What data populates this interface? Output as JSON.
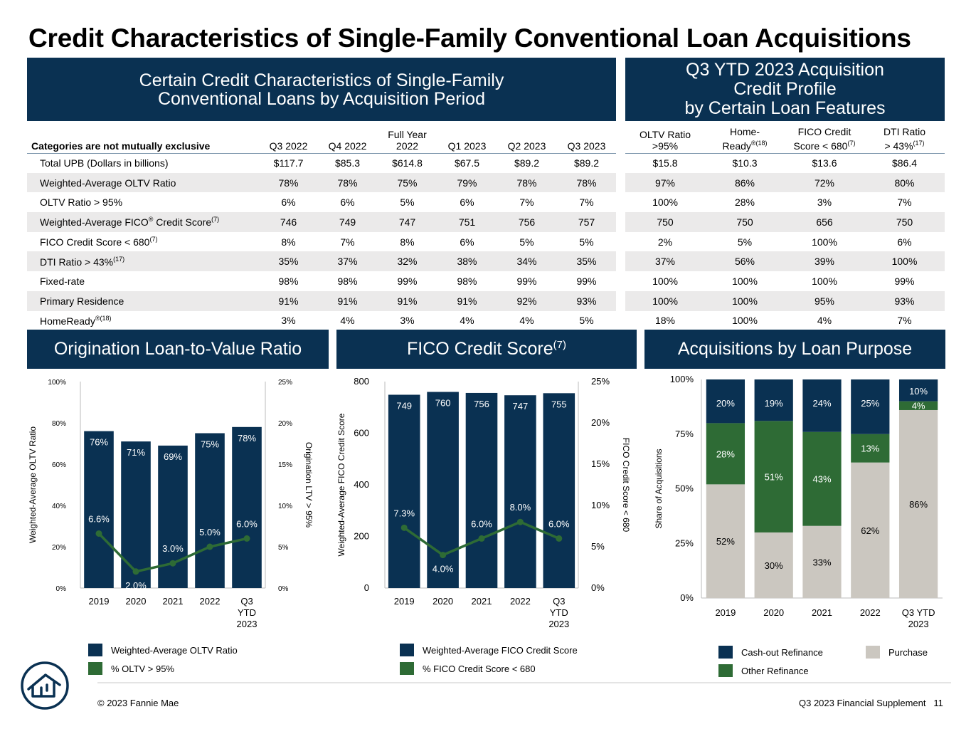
{
  "title": "Credit Characteristics of Single-Family Conventional Loan Acquisitions",
  "left_header": [
    "Certain Credit Characteristics of Single-Family",
    "Conventional Loans by Acquisition Period"
  ],
  "right_header": [
    "Q3 YTD 2023 Acquisition",
    "Credit Profile",
    "by Certain Loan Features"
  ],
  "left_table": {
    "category_label": "Categories are not mutually exclusive",
    "columns": [
      "Q3 2022",
      "Q4 2022",
      "Full Year 2022",
      "Q1 2023",
      "Q2 2023",
      "Q3 2023"
    ],
    "rows": [
      {
        "label": "Total UPB (Dollars in billions)",
        "values": [
          "$117.7",
          "$85.3",
          "$614.8",
          "$67.5",
          "$89.2",
          "$89.2"
        ]
      },
      {
        "label": "Weighted-Average OLTV Ratio",
        "values": [
          "78%",
          "78%",
          "75%",
          "79%",
          "78%",
          "78%"
        ]
      },
      {
        "label": "OLTV Ratio > 95%",
        "values": [
          "6%",
          "6%",
          "5%",
          "6%",
          "7%",
          "7%"
        ]
      },
      {
        "label": "Weighted-Average FICO® Credit Score(7)",
        "values": [
          "746",
          "749",
          "747",
          "751",
          "756",
          "757"
        ]
      },
      {
        "label": "FICO Credit Score < 680(7)",
        "values": [
          "8%",
          "7%",
          "8%",
          "6%",
          "5%",
          "5%"
        ]
      },
      {
        "label": "DTI Ratio > 43%(17)",
        "values": [
          "35%",
          "37%",
          "32%",
          "38%",
          "34%",
          "35%"
        ]
      },
      {
        "label": "Fixed-rate",
        "values": [
          "98%",
          "98%",
          "99%",
          "98%",
          "99%",
          "99%"
        ]
      },
      {
        "label": "Primary Residence",
        "values": [
          "91%",
          "91%",
          "91%",
          "91%",
          "92%",
          "93%"
        ]
      },
      {
        "label": "HomeReady®(18)",
        "values": [
          "3%",
          "4%",
          "3%",
          "4%",
          "4%",
          "5%"
        ]
      }
    ]
  },
  "right_table": {
    "columns": [
      "OLTV Ratio >95%",
      "Home-Ready®(18)",
      "FICO Credit Score < 680(7)",
      "DTI Ratio > 43%(17)"
    ],
    "rows": [
      [
        "$15.8",
        "$10.3",
        "$13.6",
        "$86.4"
      ],
      [
        "97%",
        "86%",
        "72%",
        "80%"
      ],
      [
        "100%",
        "28%",
        "3%",
        "7%"
      ],
      [
        "750",
        "750",
        "656",
        "750"
      ],
      [
        "2%",
        "5%",
        "100%",
        "6%"
      ],
      [
        "37%",
        "56%",
        "39%",
        "100%"
      ],
      [
        "100%",
        "100%",
        "100%",
        "99%"
      ],
      [
        "100%",
        "100%",
        "95%",
        "93%"
      ],
      [
        "18%",
        "100%",
        "4%",
        "7%"
      ]
    ]
  },
  "sections": {
    "oltv": "Origination Loan-to-Value Ratio",
    "fico": "FICO Credit Score",
    "fico_sup": "(7)",
    "purpose": "Acquisitions by Loan Purpose"
  },
  "chart_data": [
    {
      "type": "bar",
      "categories": [
        "2019",
        "2020",
        "2021",
        "2022",
        "Q3 YTD 2023"
      ],
      "series": [
        {
          "name": "Weighted-Average OLTV Ratio",
          "values": [
            76,
            71,
            69,
            75,
            78
          ],
          "labels": [
            "76%",
            "71%",
            "69%",
            "75%",
            "78%"
          ],
          "axis": "left"
        },
        {
          "name": "% OLTV > 95%",
          "type": "line",
          "values": [
            6.6,
            2.0,
            3.0,
            5.0,
            6.0
          ],
          "labels": [
            "6.6%",
            "2.0%",
            "3.0%",
            "5.0%",
            "6.0%"
          ],
          "axis": "right"
        }
      ],
      "ylabel": "Weighted-Average OLTV Ratio",
      "y2label": "Origination LTV > 95%",
      "ylim": [
        0,
        100
      ],
      "y2lim": [
        0,
        25
      ],
      "yticks": [
        "0%",
        "20%",
        "40%",
        "60%",
        "80%",
        "100%"
      ],
      "y2ticks": [
        "0%",
        "5%",
        "10%",
        "15%",
        "20%",
        "25%"
      ]
    },
    {
      "type": "bar",
      "categories": [
        "2019",
        "2020",
        "2021",
        "2022",
        "Q3 YTD 2023"
      ],
      "series": [
        {
          "name": "Weighted-Average FICO Credit Score",
          "values": [
            749,
            760,
            756,
            747,
            755
          ],
          "labels": [
            "749",
            "760",
            "756",
            "747",
            "755"
          ],
          "axis": "left"
        },
        {
          "name": "% FICO Credit Score < 680",
          "type": "line",
          "values": [
            7.3,
            4.0,
            6.0,
            8.0,
            6.0
          ],
          "labels": [
            "7.3%",
            "4.0%",
            "6.0%",
            "8.0%",
            "6.0%"
          ],
          "axis": "right"
        }
      ],
      "ylabel": "Weighted-Average FICO Credit Score",
      "y2label": "FICO Credit Score < 680",
      "ylim": [
        0,
        800
      ],
      "y2lim": [
        0,
        25
      ],
      "yticks": [
        "0",
        "200",
        "400",
        "600",
        "800"
      ],
      "y2ticks": [
        "0%",
        "5%",
        "10%",
        "15%",
        "20%",
        "25%"
      ]
    },
    {
      "type": "bar",
      "stacked": true,
      "categories": [
        "2019",
        "2020",
        "2021",
        "2022",
        "Q3 YTD 2023"
      ],
      "series": [
        {
          "name": "Purchase",
          "values": [
            52,
            30,
            33,
            62,
            86
          ],
          "labels": [
            "52%",
            "30%",
            "33%",
            "62%",
            "86%"
          ]
        },
        {
          "name": "Other Refinance",
          "values": [
            28,
            51,
            43,
            13,
            4
          ],
          "labels": [
            "28%",
            "51%",
            "43%",
            "13%",
            "4%"
          ]
        },
        {
          "name": "Cash-out Refinance",
          "values": [
            20,
            19,
            24,
            25,
            10
          ],
          "labels": [
            "20%",
            "19%",
            "24%",
            "25%",
            "10%"
          ]
        }
      ],
      "ylabel": "Share of Acquisitions",
      "ylim": [
        0,
        100
      ],
      "yticks": [
        "0%",
        "25%",
        "50%",
        "75%",
        "100%"
      ]
    }
  ],
  "legends": {
    "oltv": [
      "Weighted-Average OLTV Ratio",
      "% OLTV > 95%"
    ],
    "fico": [
      "Weighted-Average FICO Credit Score",
      "% FICO Credit Score < 680"
    ],
    "purpose": [
      "Cash-out Refinance",
      "Other Refinance",
      "Purchase"
    ]
  },
  "colors": {
    "navy": "#0a3152",
    "green": "#2e6b35",
    "gray": "#cbc7c0"
  },
  "footer": {
    "copyright": "© 2023 Fannie Mae",
    "doc": "Q3 2023 Financial Supplement",
    "page": "11"
  }
}
